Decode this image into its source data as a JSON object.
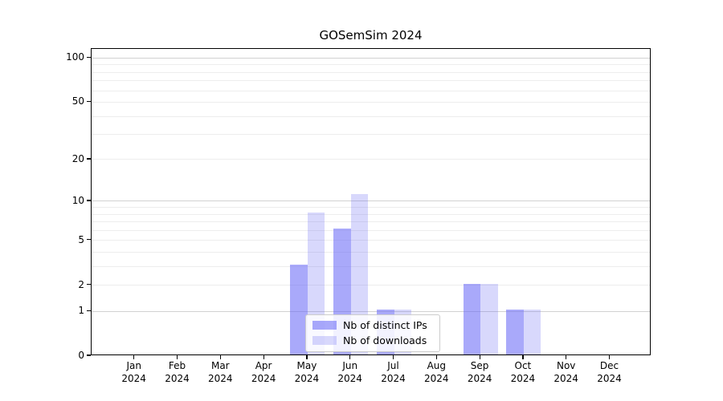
{
  "title": "GOSemSim 2024",
  "chart_data": {
    "type": "bar",
    "title": "GOSemSim 2024",
    "xlabel": "",
    "ylabel": "",
    "scale": "log1p",
    "year": "2024",
    "categories": [
      "Jan",
      "Feb",
      "Mar",
      "Apr",
      "May",
      "Jun",
      "Jul",
      "Aug",
      "Sep",
      "Oct",
      "Nov",
      "Dec"
    ],
    "series": [
      {
        "name": "Nb of distinct IPs",
        "values": [
          0,
          0,
          0,
          0,
          3,
          6,
          1,
          0,
          2,
          1,
          0,
          0
        ],
        "color": "rgba(99,99,245,0.55)"
      },
      {
        "name": "Nb of downloads",
        "values": [
          0,
          0,
          0,
          0,
          8,
          11,
          1,
          0,
          2,
          1,
          0,
          0
        ],
        "color": "rgba(99,99,245,0.25)"
      }
    ],
    "yticks": [
      0,
      1,
      2,
      5,
      10,
      20,
      50,
      100
    ],
    "major_gridlines": [
      1,
      10,
      100
    ],
    "minor_gridlines": [
      2,
      3,
      4,
      5,
      6,
      7,
      8,
      9,
      20,
      30,
      40,
      50,
      60,
      70,
      80,
      90
    ],
    "ylim": [
      0,
      117
    ],
    "grid": true,
    "legend_position": "lower center",
    "colors": {
      "bar_dark": "#abaaf9",
      "bar_light": "#d9d9fa",
      "major_grid": "#d2d2d2",
      "minor_grid": "#ededed",
      "spine": "#000000"
    }
  }
}
